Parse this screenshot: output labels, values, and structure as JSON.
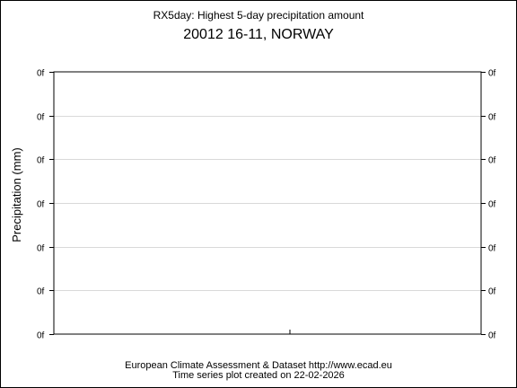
{
  "chart_data": {
    "type": "line",
    "title": "RX5day: Highest 5-day precipitation amount",
    "subtitle": "20012 16-11, NORWAY",
    "ylabel": "Precipitation (mm)",
    "xlabel": "",
    "x": [],
    "series": [],
    "y_ticks_left": [
      "0f",
      "0f",
      "0f",
      "0f",
      "0f",
      "0f",
      "0f"
    ],
    "y_ticks_right": [
      "0f",
      "0f",
      "0f",
      "0f",
      "0f",
      "0f",
      "0f"
    ],
    "grid": true,
    "legend": "none"
  },
  "footer": {
    "line1": "European Climate Assessment & Dataset  http://www.ecad.eu",
    "line2": "Time series plot created on 22-02-2026"
  }
}
